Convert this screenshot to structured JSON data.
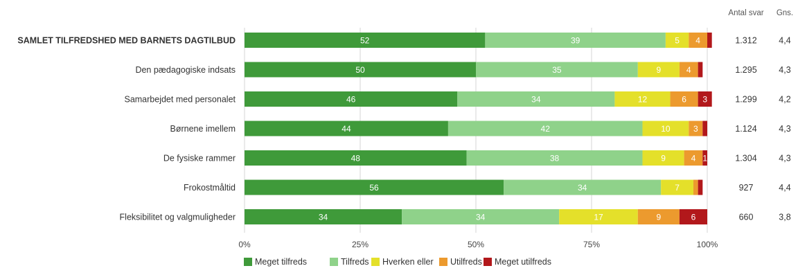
{
  "chart_data": {
    "type": "bar",
    "orientation": "horizontal",
    "stacked": true,
    "percent": true,
    "categories": [
      "SAMLET TILFREDSHED MED BARNETS DAGTILBUD",
      "Den pædagogiske indsats",
      "Samarbejdet med personalet",
      "Børnene imellem",
      "De fysiske rammer",
      "Frokostmåltid",
      "Fleksibilitet og valgmuligheder"
    ],
    "bold_categories": [
      0
    ],
    "series": [
      {
        "name": "Meget tilfreds",
        "color": "#3f9a3a",
        "values": [
          52,
          50,
          46,
          44,
          48,
          56,
          34
        ]
      },
      {
        "name": "Tilfreds",
        "color": "#8fd28a",
        "values": [
          39,
          35,
          34,
          42,
          38,
          34,
          34
        ]
      },
      {
        "name": "Hverken eller",
        "color": "#e4e02a",
        "values": [
          5,
          9,
          12,
          10,
          9,
          7,
          17
        ]
      },
      {
        "name": "Utilfreds",
        "color": "#ec9a2e",
        "values": [
          4,
          4,
          6,
          3,
          4,
          1,
          9
        ]
      },
      {
        "name": "Meget utilfreds",
        "color": "#b2181b",
        "values": [
          1,
          1,
          3,
          1,
          1,
          1,
          6
        ]
      }
    ],
    "segment_labels": [
      [
        "52",
        "39",
        "5",
        "4",
        ""
      ],
      [
        "50",
        "35",
        "9",
        "4",
        ""
      ],
      [
        "46",
        "34",
        "12",
        "6",
        "3"
      ],
      [
        "44",
        "42",
        "10",
        "3",
        ""
      ],
      [
        "48",
        "38",
        "9",
        "4",
        "1"
      ],
      [
        "56",
        "34",
        "7",
        "",
        ""
      ],
      [
        "34",
        "34",
        "17",
        "9",
        "6"
      ]
    ],
    "xlim": [
      0,
      100
    ],
    "x_ticks": [
      "0%",
      "25%",
      "50%",
      "75%",
      "100%"
    ],
    "x_tick_values": [
      0,
      25,
      50,
      75,
      100
    ],
    "extra_columns": [
      {
        "header": "Antal svar",
        "values": [
          "1.312",
          "1.295",
          "1.299",
          "1.124",
          "1.304",
          "927",
          "660"
        ]
      },
      {
        "header": "Gns.",
        "values": [
          "4,4",
          "4,3",
          "4,2",
          "4,3",
          "4,3",
          "4,4",
          "3,8"
        ]
      }
    ],
    "legend_position": "bottom",
    "grid": "vertical",
    "title": "",
    "xlabel": "",
    "ylabel": ""
  }
}
